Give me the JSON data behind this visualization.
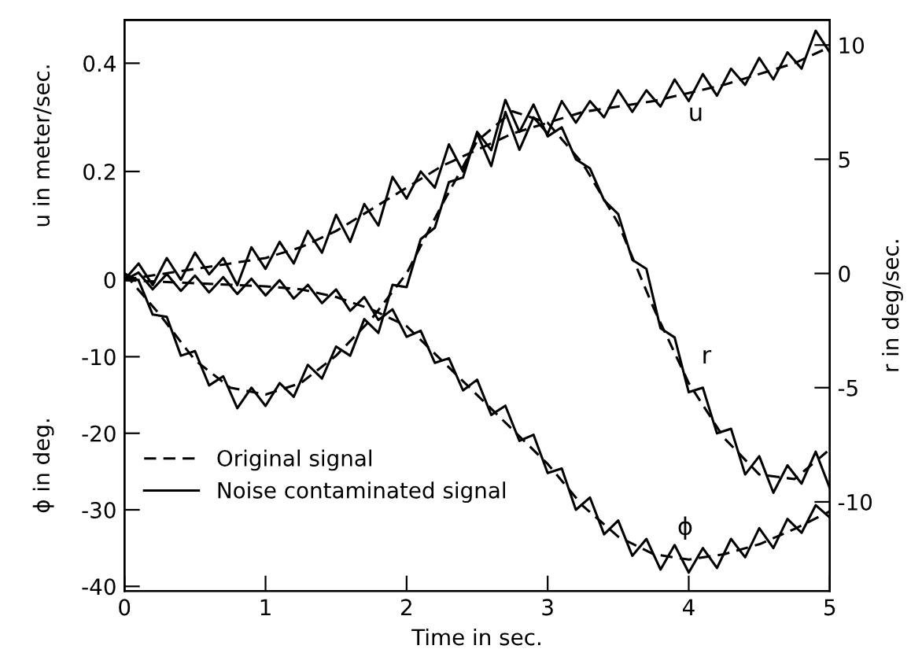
{
  "chart_data": {
    "type": "line",
    "xlabel": "Time in sec.",
    "ylabel": "ϕ in deg.",
    "y2label": "r in deg/sec.",
    "y3label": "u in meter/sec.",
    "xlim": [
      0,
      5
    ],
    "xticks": [
      0,
      1,
      2,
      3,
      4,
      5
    ],
    "ylim": [
      -40.6,
      34
    ],
    "yticks": [
      -40,
      -30,
      -20,
      -10
    ],
    "y2lim": [
      -13.9,
      11.1
    ],
    "y2ticks": [
      -10,
      -5,
      0,
      5,
      10
    ],
    "y3lim": [
      -0.575,
      0.48
    ],
    "y3ticks": [
      0,
      0.2,
      0.4
    ],
    "grid": false,
    "legend": "lower left",
    "marker": "none",
    "annotations": [
      "u",
      "r",
      "ϕ"
    ],
    "series": [
      {
        "name": "Original signal",
        "color": "#000000",
        "line_style": "dashed",
        "axis": "y3",
        "x": [
          0,
          0.25,
          0.5,
          0.75,
          1,
          1.25,
          1.5,
          1.75,
          2,
          2.25,
          2.5,
          2.75,
          3,
          3.25,
          3.5,
          3.75,
          4,
          4.25,
          4.5,
          4.75,
          5
        ],
        "values": [
          0,
          0.01,
          0.02,
          0.03,
          0.04,
          0.06,
          0.09,
          0.13,
          0.17,
          0.21,
          0.24,
          0.27,
          0.29,
          0.31,
          0.32,
          0.33,
          0.345,
          0.36,
          0.38,
          0.4,
          0.43
        ]
      },
      {
        "name": "Noise contaminated signal",
        "color": "#000000",
        "line_style": "solid",
        "axis": "y3",
        "x": [
          0,
          0.1,
          0.2,
          0.3,
          0.4,
          0.5,
          0.6,
          0.7,
          0.8,
          0.9,
          1,
          1.1,
          1.2,
          1.3,
          1.4,
          1.5,
          1.6,
          1.7,
          1.8,
          1.9,
          2,
          2.1,
          2.2,
          2.3,
          2.4,
          2.5,
          2.6,
          2.7,
          2.8,
          2.9,
          3,
          3.1,
          3.2,
          3.3,
          3.4,
          3.5,
          3.6,
          3.7,
          3.8,
          3.9,
          4,
          4.1,
          4.2,
          4.3,
          4.4,
          4.5,
          4.6,
          4.7,
          4.8,
          4.9,
          5
        ],
        "values": [
          0,
          0.03,
          -0.01,
          0.04,
          0,
          0.05,
          0.01,
          0.04,
          -0.01,
          0.06,
          0.02,
          0.07,
          0.03,
          0.09,
          0.05,
          0.12,
          0.07,
          0.14,
          0.1,
          0.19,
          0.15,
          0.2,
          0.17,
          0.25,
          0.2,
          0.27,
          0.21,
          0.31,
          0.24,
          0.3,
          0.27,
          0.33,
          0.29,
          0.33,
          0.3,
          0.35,
          0.31,
          0.35,
          0.32,
          0.37,
          0.33,
          0.38,
          0.34,
          0.39,
          0.36,
          0.41,
          0.37,
          0.42,
          0.39,
          0.46,
          0.42
        ]
      },
      {
        "color": "#000000",
        "line_style": "dashed",
        "axis": "y2",
        "x": [
          0,
          0.25,
          0.5,
          0.75,
          1,
          1.25,
          1.5,
          1.75,
          2,
          2.25,
          2.5,
          2.75,
          3,
          3.25,
          3.5,
          3.75,
          4,
          4.25,
          4.5,
          4.75,
          5
        ],
        "values": [
          0,
          -1.8,
          -3.8,
          -5.0,
          -5.3,
          -4.8,
          -3.6,
          -2.0,
          0,
          3.0,
          5.8,
          7.1,
          6.6,
          4.8,
          2.2,
          -1.5,
          -4.8,
          -7.2,
          -8.8,
          -9.0,
          -7.7
        ]
      },
      {
        "color": "#000000",
        "line_style": "solid",
        "axis": "y2",
        "x": [
          0,
          0.1,
          0.2,
          0.3,
          0.4,
          0.5,
          0.6,
          0.7,
          0.8,
          0.9,
          1,
          1.1,
          1.2,
          1.3,
          1.4,
          1.5,
          1.6,
          1.7,
          1.8,
          1.9,
          2,
          2.1,
          2.2,
          2.3,
          2.4,
          2.5,
          2.6,
          2.7,
          2.8,
          2.9,
          3,
          3.1,
          3.2,
          3.3,
          3.4,
          3.5,
          3.6,
          3.7,
          3.8,
          3.9,
          4,
          4.1,
          4.2,
          4.3,
          4.4,
          4.5,
          4.6,
          4.7,
          4.8,
          4.9,
          5
        ],
        "values": [
          0,
          -0.3,
          -1.8,
          -1.9,
          -3.6,
          -3.4,
          -4.9,
          -4.5,
          -5.9,
          -5.0,
          -5.8,
          -4.8,
          -5.4,
          -4.0,
          -4.6,
          -3.2,
          -3.6,
          -2.0,
          -2.6,
          -0.5,
          -0.6,
          1.5,
          2.0,
          4.0,
          4.2,
          6.2,
          5.4,
          7.6,
          6.2,
          7.4,
          6.0,
          6.4,
          5.0,
          4.6,
          3.2,
          2.6,
          0.6,
          0.2,
          -2.4,
          -2.8,
          -5.2,
          -5.0,
          -7.0,
          -6.8,
          -8.8,
          -8.0,
          -9.6,
          -8.4,
          -9.2,
          -7.8,
          -9.4
        ]
      },
      {
        "color": "#000000",
        "line_style": "dashed",
        "x": [
          0,
          0.25,
          0.5,
          0.75,
          1,
          1.25,
          1.5,
          1.75,
          2,
          2.25,
          2.5,
          2.75,
          3,
          3.25,
          3.5,
          3.75,
          4,
          4.25,
          4.5,
          4.75,
          5
        ],
        "values": [
          0,
          -0.2,
          -0.4,
          -0.6,
          -0.8,
          -1.2,
          -2.2,
          -3.8,
          -6.0,
          -10.5,
          -15,
          -19.5,
          -24,
          -29.5,
          -33.5,
          -35.8,
          -36.5,
          -35.8,
          -34.5,
          -32.5,
          -30.2
        ]
      },
      {
        "color": "#000000",
        "line_style": "solid",
        "x": [
          0,
          0.1,
          0.2,
          0.3,
          0.4,
          0.5,
          0.6,
          0.7,
          0.8,
          0.9,
          1,
          1.1,
          1.2,
          1.3,
          1.4,
          1.5,
          1.6,
          1.7,
          1.8,
          1.9,
          2,
          2.1,
          2.2,
          2.3,
          2.4,
          2.5,
          2.6,
          2.7,
          2.8,
          2.9,
          3,
          3.1,
          3.2,
          3.3,
          3.4,
          3.5,
          3.6,
          3.7,
          3.8,
          3.9,
          4,
          4.1,
          4.2,
          4.3,
          4.4,
          4.5,
          4.6,
          4.7,
          4.8,
          4.9,
          5
        ],
        "values": [
          0,
          1.0,
          -1.2,
          0.8,
          -1.4,
          0.6,
          -1.6,
          0.4,
          -1.8,
          0.2,
          -2.0,
          0.0,
          -2.4,
          -0.6,
          -3.0,
          -1.2,
          -4.0,
          -2.2,
          -5.2,
          -3.8,
          -7.4,
          -6.6,
          -10.8,
          -10.2,
          -14.4,
          -13.0,
          -17.6,
          -16.4,
          -21.0,
          -20.2,
          -25.2,
          -24.6,
          -30.0,
          -28.4,
          -33.2,
          -31.4,
          -36.0,
          -33.8,
          -37.8,
          -34.6,
          -38.2,
          -35.0,
          -37.6,
          -33.8,
          -36.2,
          -32.4,
          -35.0,
          -31.2,
          -33.0,
          -29.4,
          -31.0
        ]
      }
    ]
  }
}
